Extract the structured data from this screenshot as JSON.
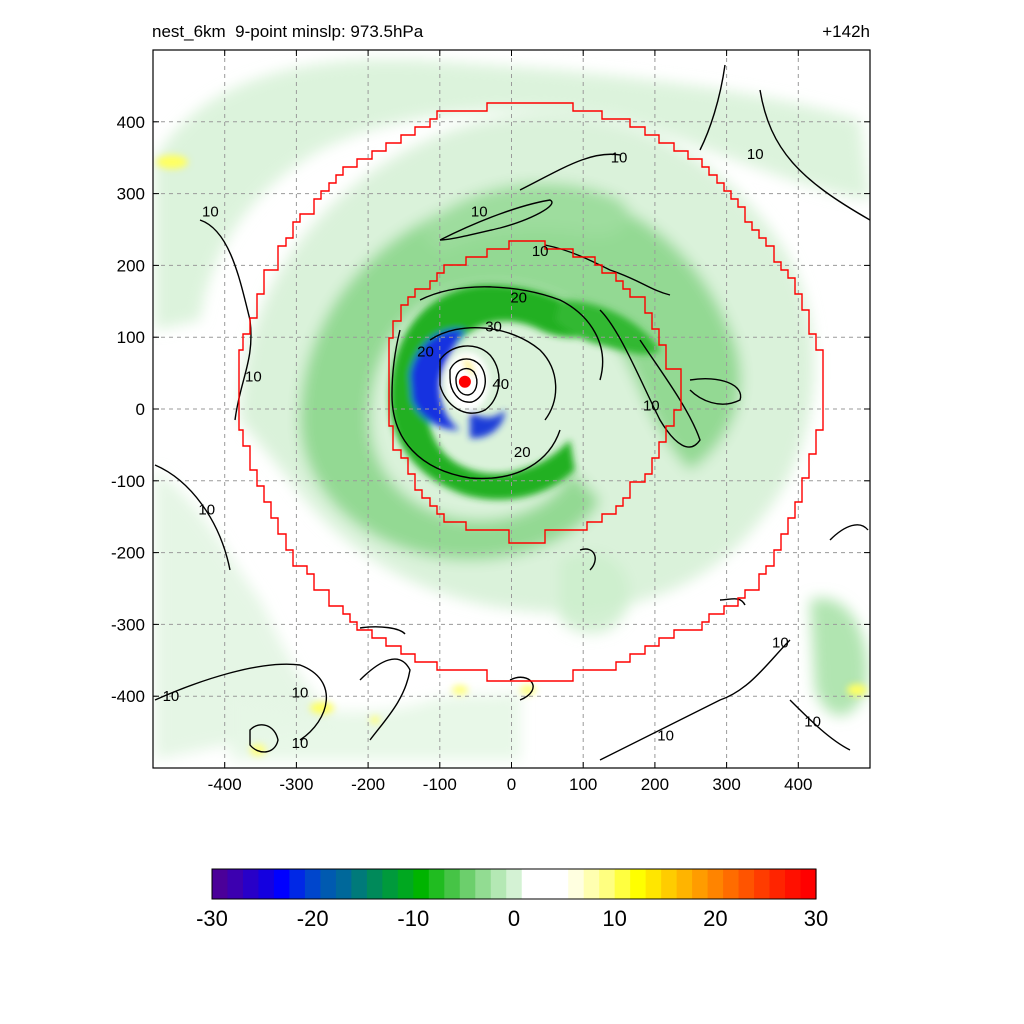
{
  "header": {
    "title_left": "nest_6km  9-point minslp: 973.5hPa",
    "title_right": "+142h"
  },
  "chart_data": {
    "type": "heatmap",
    "description_text": "",
    "xlim": [
      -500,
      500
    ],
    "ylim": [
      -500,
      500
    ],
    "x_ticks": [
      -400,
      -300,
      -200,
      -100,
      0,
      100,
      200,
      300,
      400
    ],
    "y_ticks": [
      -400,
      -300,
      -200,
      -100,
      0,
      100,
      200,
      300,
      400
    ],
    "x_tick_labels": [
      "-400",
      "-300",
      "-200",
      "-100",
      "0",
      "100",
      "200",
      "300",
      "400"
    ],
    "y_tick_labels": [
      "-400",
      "-300",
      "-200",
      "-100",
      "0",
      "100",
      "200",
      "300",
      "400"
    ],
    "grid": true,
    "grid_style": "dashed",
    "storm_center": [
      -65,
      38
    ],
    "contour_labels": [
      {
        "text": "10",
        "x": 40,
        "y": 220
      },
      {
        "text": "10",
        "x": -45,
        "y": 275
      },
      {
        "text": "10",
        "x": 150,
        "y": 350
      },
      {
        "text": "10",
        "x": 340,
        "y": 355
      },
      {
        "text": "10",
        "x": -420,
        "y": 275
      },
      {
        "text": "10",
        "x": -360,
        "y": 45
      },
      {
        "text": "10",
        "x": 195,
        "y": 5
      },
      {
        "text": "10",
        "x": -425,
        "y": -140
      },
      {
        "text": "10",
        "x": -475,
        "y": -400
      },
      {
        "text": "10",
        "x": -295,
        "y": -395
      },
      {
        "text": "10",
        "x": -295,
        "y": -465
      },
      {
        "text": "10",
        "x": 215,
        "y": -455
      },
      {
        "text": "10",
        "x": 375,
        "y": -325
      },
      {
        "text": "10",
        "x": 420,
        "y": -435
      },
      {
        "text": "20",
        "x": 15,
        "y": -60
      },
      {
        "text": "20",
        "x": -120,
        "y": 80
      },
      {
        "text": "20",
        "x": 10,
        "y": 155
      },
      {
        "text": "30",
        "x": -25,
        "y": 115
      },
      {
        "text": "40",
        "x": -15,
        "y": 35
      }
    ],
    "colorbar": {
      "min": -30,
      "max": 30,
      "tick_values": [
        -30,
        -20,
        -10,
        0,
        10,
        20,
        30
      ],
      "tick_labels": [
        "-30",
        "-20",
        "-10",
        "0",
        "10",
        "20",
        "30"
      ],
      "colors": [
        "#4b0099",
        "#3c00b0",
        "#2800c8",
        "#1400e0",
        "#0000ff",
        "#0028e6",
        "#0046cc",
        "#005ab0",
        "#00689a",
        "#007a7a",
        "#008a5a",
        "#009a3c",
        "#00a820",
        "#00b400",
        "#20bc20",
        "#46c446",
        "#6ccf6c",
        "#92dc92",
        "#b4e8b4",
        "#d4f2d4",
        "#ffffff",
        "#ffffff",
        "#ffffff",
        "#ffffe0",
        "#ffffb0",
        "#ffff80",
        "#ffff40",
        "#ffff00",
        "#ffe600",
        "#ffcc00",
        "#ffb400",
        "#ff9c00",
        "#ff8400",
        "#ff6c00",
        "#ff5400",
        "#ff3c00",
        "#ff2400",
        "#ff1000",
        "#ff0000"
      ]
    },
    "colors": {
      "nest_boundary": "#ff0000",
      "contour": "#000000",
      "center_marker": "#ff0000"
    }
  }
}
